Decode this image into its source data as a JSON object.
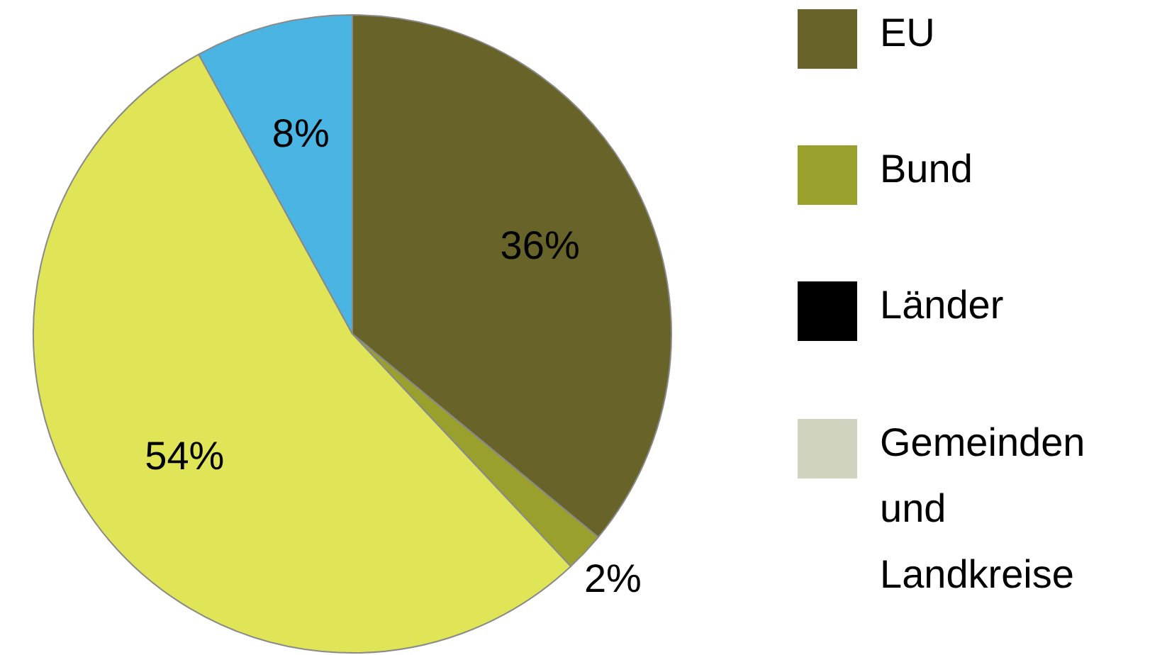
{
  "chart_data": {
    "type": "pie",
    "categories": [
      "EU",
      "Bund",
      "Länder",
      "Gemeinden und Landkreise",
      null,
      null
    ],
    "values": [
      36,
      2,
      0,
      0,
      54,
      8
    ],
    "colors": [
      "#676329",
      "#9aa02c",
      "#000000",
      "#cfd3bf",
      "#e0e457",
      "#4ab4e3"
    ],
    "value_labels": [
      "36%",
      "2%",
      null,
      null,
      "54%",
      "8%"
    ],
    "legend": "right"
  }
}
